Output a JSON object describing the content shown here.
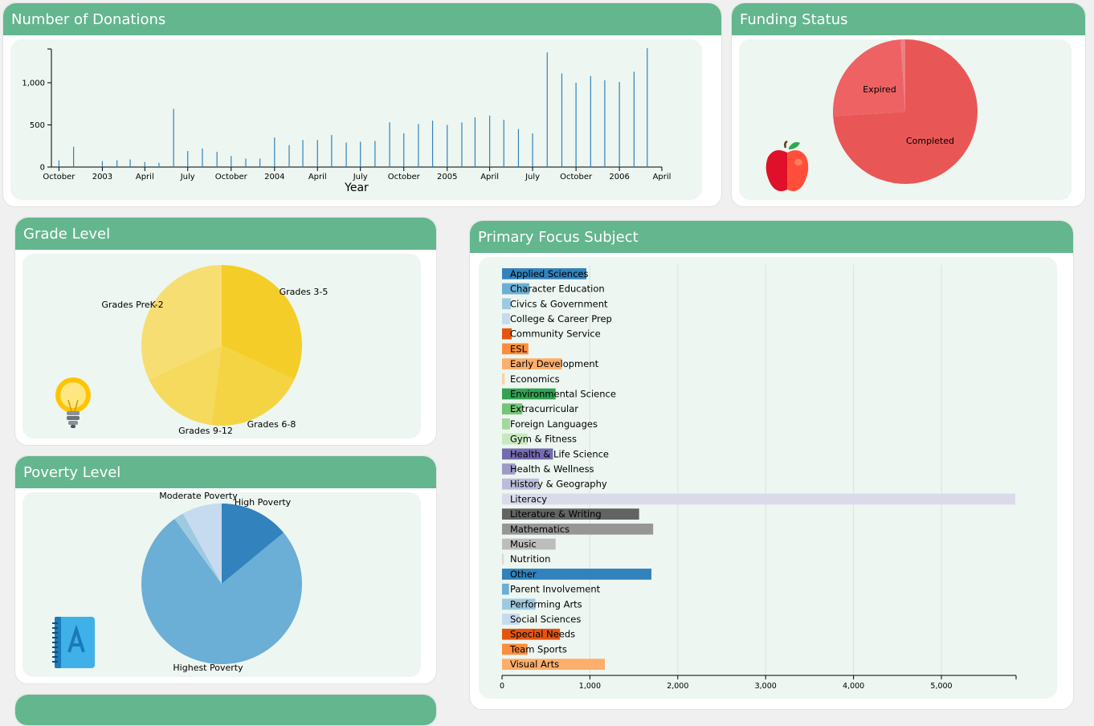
{
  "panels": {
    "donations_title": "Number of Donations",
    "funding_title": "Funding Status",
    "grade_title": "Grade Level",
    "subject_title": "Primary Focus Subject",
    "poverty_title": "Poverty Level"
  },
  "icons": {
    "funding": "apple-icon",
    "grade": "lightbulb-icon",
    "poverty": "address-book-icon"
  },
  "colors": {
    "header": "#64b68e",
    "panel_bg": "#edf6f0",
    "bar_line": "#3182bd"
  },
  "chart_data": [
    {
      "id": "donations",
      "type": "bar",
      "xlabel": "Year",
      "ylabel": "",
      "ylim": [
        0,
        1400
      ],
      "yticks": [
        0,
        500,
        1000
      ],
      "ytick_labels": [
        "0",
        "500",
        "1,000"
      ],
      "xlim": [
        "2002-09-15",
        "2006-04-01"
      ],
      "xticks": [
        {
          "date": "2002-10-01",
          "label": "October"
        },
        {
          "date": "2003-01-01",
          "label": "2003"
        },
        {
          "date": "2003-04-01",
          "label": "April"
        },
        {
          "date": "2003-07-01",
          "label": "July"
        },
        {
          "date": "2003-10-01",
          "label": "October"
        },
        {
          "date": "2004-01-01",
          "label": "2004"
        },
        {
          "date": "2004-04-01",
          "label": "April"
        },
        {
          "date": "2004-07-01",
          "label": "July"
        },
        {
          "date": "2004-10-01",
          "label": "October"
        },
        {
          "date": "2005-01-01",
          "label": "2005"
        },
        {
          "date": "2005-04-01",
          "label": "April"
        },
        {
          "date": "2005-07-01",
          "label": "July"
        },
        {
          "date": "2005-10-01",
          "label": "October"
        },
        {
          "date": "2006-01-01",
          "label": "2006"
        },
        {
          "date": "2006-04-01",
          "label": "April"
        }
      ],
      "points": [
        {
          "x": "2002-10-01",
          "y": 80
        },
        {
          "x": "2002-11-01",
          "y": 240
        },
        {
          "x": "2002-12-01",
          "y": 10
        },
        {
          "x": "2003-01-01",
          "y": 70
        },
        {
          "x": "2003-02-01",
          "y": 80
        },
        {
          "x": "2003-03-01",
          "y": 90
        },
        {
          "x": "2003-04-01",
          "y": 60
        },
        {
          "x": "2003-05-01",
          "y": 50
        },
        {
          "x": "2003-06-01",
          "y": 690
        },
        {
          "x": "2003-07-01",
          "y": 190
        },
        {
          "x": "2003-08-01",
          "y": 220
        },
        {
          "x": "2003-09-01",
          "y": 180
        },
        {
          "x": "2003-10-01",
          "y": 130
        },
        {
          "x": "2003-11-01",
          "y": 100
        },
        {
          "x": "2003-12-01",
          "y": 100
        },
        {
          "x": "2004-01-01",
          "y": 350
        },
        {
          "x": "2004-02-01",
          "y": 260
        },
        {
          "x": "2004-03-01",
          "y": 320
        },
        {
          "x": "2004-04-01",
          "y": 320
        },
        {
          "x": "2004-05-01",
          "y": 380
        },
        {
          "x": "2004-06-01",
          "y": 290
        },
        {
          "x": "2004-07-01",
          "y": 300
        },
        {
          "x": "2004-08-01",
          "y": 310
        },
        {
          "x": "2004-09-01",
          "y": 530
        },
        {
          "x": "2004-10-01",
          "y": 400
        },
        {
          "x": "2004-11-01",
          "y": 510
        },
        {
          "x": "2004-12-01",
          "y": 550
        },
        {
          "x": "2005-01-01",
          "y": 500
        },
        {
          "x": "2005-02-01",
          "y": 530
        },
        {
          "x": "2005-03-01",
          "y": 590
        },
        {
          "x": "2005-04-01",
          "y": 610
        },
        {
          "x": "2005-05-01",
          "y": 560
        },
        {
          "x": "2005-06-01",
          "y": 450
        },
        {
          "x": "2005-07-01",
          "y": 400
        },
        {
          "x": "2005-08-01",
          "y": 1360
        },
        {
          "x": "2005-09-01",
          "y": 1110
        },
        {
          "x": "2005-10-01",
          "y": 1000
        },
        {
          "x": "2005-11-01",
          "y": 1080
        },
        {
          "x": "2005-12-01",
          "y": 1030
        },
        {
          "x": "2006-01-01",
          "y": 1010
        },
        {
          "x": "2006-02-01",
          "y": 1130
        },
        {
          "x": "2006-03-01",
          "y": 1410
        }
      ]
    },
    {
      "id": "funding",
      "type": "pie",
      "slices": [
        {
          "label": "Completed",
          "value": 74,
          "color": "#e85756"
        },
        {
          "label": "Expired",
          "value": 25,
          "color": "#ee6264"
        },
        {
          "label": "",
          "value": 1,
          "color": "#f07f82"
        }
      ]
    },
    {
      "id": "grade",
      "type": "pie",
      "slices": [
        {
          "label": "Grades 3-5",
          "value": 32,
          "color": "#f4cd29"
        },
        {
          "label": "Grades 6-8",
          "value": 20,
          "color": "#f5d444"
        },
        {
          "label": "Grades 9-12",
          "value": 16,
          "color": "#f6da5d"
        },
        {
          "label": "Grades PreK-2",
          "value": 32,
          "color": "#f7de72"
        }
      ]
    },
    {
      "id": "poverty",
      "type": "pie",
      "slices": [
        {
          "label": "High Poverty",
          "value": 14,
          "color": "#3182bd"
        },
        {
          "label": "Highest Poverty",
          "value": 76,
          "color": "#6baed6"
        },
        {
          "label": "",
          "value": 2,
          "color": "#9ecae1"
        },
        {
          "label": "Moderate Poverty",
          "value": 8,
          "color": "#c6dbef"
        }
      ]
    },
    {
      "id": "subject",
      "type": "bar",
      "orientation": "horizontal",
      "xlim": [
        0,
        5850
      ],
      "xticks": [
        0,
        1000,
        2000,
        3000,
        4000,
        5000
      ],
      "xtick_labels": [
        "0",
        "1,000",
        "2,000",
        "3,000",
        "4,000",
        "5,000"
      ],
      "bars": [
        {
          "label": "Applied Sciences",
          "value": 960,
          "color": "#3182bd"
        },
        {
          "label": "Character Education",
          "value": 310,
          "color": "#6baed6"
        },
        {
          "label": "Civics & Government",
          "value": 100,
          "color": "#9ecae1"
        },
        {
          "label": "College & Career Prep",
          "value": 90,
          "color": "#c6dbef"
        },
        {
          "label": "Community Service",
          "value": 110,
          "color": "#e6550d"
        },
        {
          "label": "ESL",
          "value": 300,
          "color": "#fd8d3c"
        },
        {
          "label": "Early Development",
          "value": 680,
          "color": "#fdae6b"
        },
        {
          "label": "Economics",
          "value": 30,
          "color": "#fdd0a2"
        },
        {
          "label": "Environmental Science",
          "value": 610,
          "color": "#31a354"
        },
        {
          "label": "Extracurricular",
          "value": 230,
          "color": "#74c476"
        },
        {
          "label": "Foreign Languages",
          "value": 90,
          "color": "#a1d99b"
        },
        {
          "label": "Gym & Fitness",
          "value": 290,
          "color": "#c7e9c0"
        },
        {
          "label": "Health & Life Science",
          "value": 580,
          "color": "#756bb1"
        },
        {
          "label": "Health & Wellness",
          "value": 150,
          "color": "#9e9ac8"
        },
        {
          "label": "History & Geography",
          "value": 420,
          "color": "#bcbddc"
        },
        {
          "label": "Literacy",
          "value": 5840,
          "color": "#dadaeb"
        },
        {
          "label": "Literature & Writing",
          "value": 1560,
          "color": "#636363"
        },
        {
          "label": "Mathematics",
          "value": 1720,
          "color": "#969696"
        },
        {
          "label": "Music",
          "value": 610,
          "color": "#bdbdbd"
        },
        {
          "label": "Nutrition",
          "value": 20,
          "color": "#d9d9d9"
        },
        {
          "label": "Other",
          "value": 1700,
          "color": "#3182bd"
        },
        {
          "label": "Parent Involvement",
          "value": 80,
          "color": "#6baed6"
        },
        {
          "label": "Performing Arts",
          "value": 380,
          "color": "#9ecae1"
        },
        {
          "label": "Social Sciences",
          "value": 200,
          "color": "#c6dbef"
        },
        {
          "label": "Special Needs",
          "value": 660,
          "color": "#e6550d"
        },
        {
          "label": "Team Sports",
          "value": 290,
          "color": "#fd8d3c"
        },
        {
          "label": "Visual Arts",
          "value": 1170,
          "color": "#fdae6b"
        }
      ]
    }
  ]
}
